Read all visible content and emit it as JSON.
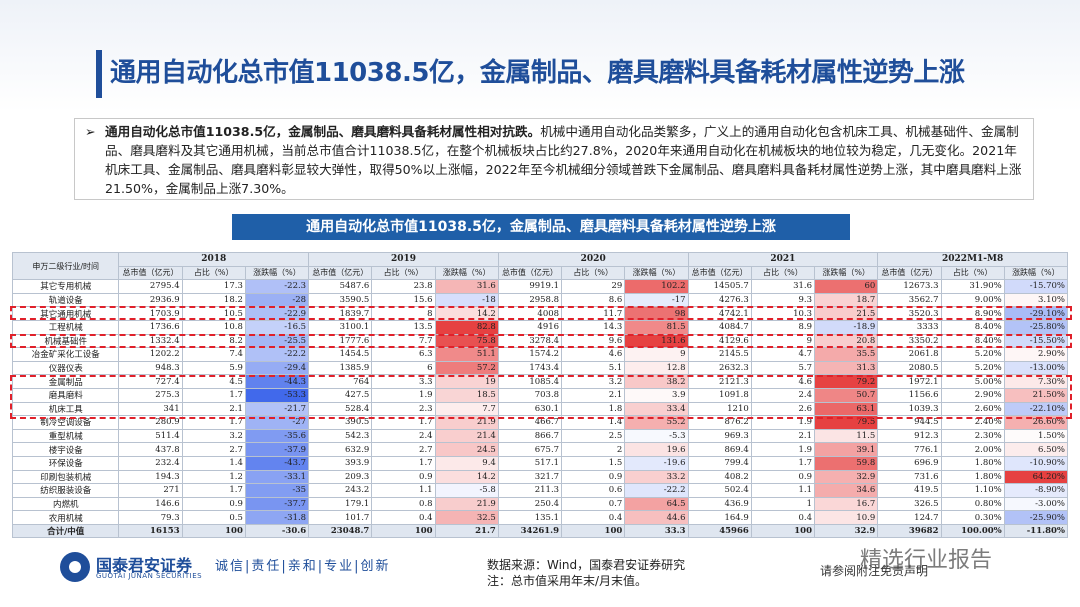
{
  "header": {
    "title": "通用自动化总市值11038.5亿，金属制品、磨具磨料具备耗材属性逆势上涨"
  },
  "summary": {
    "bullet": "➢",
    "lead": "通用自动化总市值11038.5亿，金属制品、磨具磨料具备耗材属性相对抗跌。",
    "text": "机械中通用自动化品类繁多，广义上的通用自动化包含机床工具、机械基础件、金属制品、磨具磨料及其它通用机械，当前总市值合计11038.5亿，在整个机械板块占比约27.8%，2020年来通用自动化在机械板块的地位较为稳定，几无变化。2021年机床工具、金属制品、磨具磨料彰显较大弹性，取得50%以上涨幅，2022年至今机械细分领域普跌下金属制品、磨具磨料具备耗材属性逆势上涨，其中磨具磨料上涨21.50%，金属制品上涨7.30%。"
  },
  "table": {
    "title": "通用自动化总市值11038.5亿，金属制品、磨具磨料具备耗材属性逆势上涨",
    "corner": "申万二级行业/时间",
    "groups": [
      {
        "year": "2018",
        "headers": [
          "总市值（亿元）",
          "占比（%）",
          "涨跌幅（%）"
        ]
      },
      {
        "year": "2019",
        "headers": [
          "总市值（亿元）",
          "占比（%）",
          "涨跌幅（%）"
        ]
      },
      {
        "year": "2020",
        "headers": [
          "总市值（亿元）",
          "占比（%）",
          "涨跌幅（%）"
        ]
      },
      {
        "year": "2021",
        "headers": [
          "总市值（亿元）",
          "占比（%）",
          "涨跌幅（%）"
        ]
      },
      {
        "year": "2022M1-M8",
        "headers": [
          "总市值（亿元）",
          "占比（%）",
          "涨跌幅（%）"
        ]
      }
    ],
    "rows": [
      {
        "label": "其它专用机械",
        "cells": [
          "2795.4",
          "17.3",
          "-22.3",
          "5487.6",
          "23.8",
          "31.6",
          "9919.1",
          "29",
          "102.2",
          "14505.7",
          "31.6",
          "60",
          "12673.3",
          "31.90%",
          "-15.70%"
        ]
      },
      {
        "label": "轨道设备",
        "cells": [
          "2936.9",
          "18.2",
          "-28",
          "3590.5",
          "15.6",
          "-18",
          "2958.8",
          "8.6",
          "-17",
          "4276.3",
          "9.3",
          "18.7",
          "3562.7",
          "9.00%",
          "3.10%"
        ]
      },
      {
        "label": "其它通用机械",
        "cells": [
          "1703.9",
          "10.5",
          "-22.9",
          "1839.7",
          "8",
          "14.2",
          "4008",
          "11.7",
          "98",
          "4742.1",
          "10.3",
          "21.5",
          "3520.3",
          "8.90%",
          "-29.10%"
        ]
      },
      {
        "label": "工程机械",
        "cells": [
          "1736.6",
          "10.8",
          "-16.5",
          "3100.1",
          "13.5",
          "82.8",
          "4916",
          "14.3",
          "81.5",
          "4084.7",
          "8.9",
          "-18.9",
          "3333",
          "8.40%",
          "-25.80%"
        ]
      },
      {
        "label": "机械基础件",
        "cells": [
          "1332.4",
          "8.2",
          "-25.5",
          "1777.6",
          "7.7",
          "75.8",
          "3278.4",
          "9.6",
          "131.6",
          "4129.6",
          "9",
          "20.8",
          "3350.2",
          "8.40%",
          "-15.50%"
        ]
      },
      {
        "label": "冶金矿采化工设备",
        "cells": [
          "1202.2",
          "7.4",
          "-22.2",
          "1454.5",
          "6.3",
          "51.1",
          "1574.2",
          "4.6",
          "9",
          "2145.5",
          "4.7",
          "35.5",
          "2061.8",
          "5.20%",
          "2.90%"
        ]
      },
      {
        "label": "仪器仪表",
        "cells": [
          "948.3",
          "5.9",
          "-29.4",
          "1385.9",
          "6",
          "57.2",
          "1743.4",
          "5.1",
          "12.8",
          "2632.3",
          "5.7",
          "31.3",
          "2080.5",
          "5.20%",
          "-13.00%"
        ]
      },
      {
        "label": "金属制品",
        "cells": [
          "727.4",
          "4.5",
          "-44.3",
          "764",
          "3.3",
          "19",
          "1085.4",
          "3.2",
          "38.2",
          "2121.3",
          "4.6",
          "79.2",
          "1972.1",
          "5.00%",
          "7.30%"
        ]
      },
      {
        "label": "磨具磨料",
        "cells": [
          "275.3",
          "1.7",
          "-53.3",
          "427.5",
          "1.9",
          "18.5",
          "703.8",
          "2.1",
          "3.9",
          "1091.8",
          "2.4",
          "50.7",
          "1156.6",
          "2.90%",
          "21.50%"
        ]
      },
      {
        "label": "机床工具",
        "cells": [
          "341",
          "2.1",
          "-21.7",
          "528.4",
          "2.3",
          "7.7",
          "630.1",
          "1.8",
          "33.4",
          "1210",
          "2.6",
          "63.1",
          "1039.3",
          "2.60%",
          "-22.10%"
        ]
      },
      {
        "label": "制冷空调设备",
        "cells": [
          "280.9",
          "1.7",
          "-27",
          "390.5",
          "1.7",
          "21.9",
          "466.7",
          "1.4",
          "55.2",
          "876.2",
          "1.9",
          "79.5",
          "944.5",
          "2.40%",
          "26.60%"
        ]
      },
      {
        "label": "重型机械",
        "cells": [
          "511.4",
          "3.2",
          "-35.6",
          "542.3",
          "2.4",
          "21.4",
          "866.7",
          "2.5",
          "-5.3",
          "969.3",
          "2.1",
          "11.5",
          "912.3",
          "2.30%",
          "1.50%"
        ]
      },
      {
        "label": "楼宇设备",
        "cells": [
          "437.8",
          "2.7",
          "-37.9",
          "632.9",
          "2.7",
          "24.5",
          "675.7",
          "2",
          "19.6",
          "869.4",
          "1.9",
          "39.1",
          "776.1",
          "2.00%",
          "6.50%"
        ]
      },
      {
        "label": "环保设备",
        "cells": [
          "232.4",
          "1.4",
          "-43.7",
          "393.9",
          "1.7",
          "9.4",
          "517.1",
          "1.5",
          "-19.6",
          "799.4",
          "1.7",
          "59.8",
          "696.9",
          "1.80%",
          "-10.90%"
        ]
      },
      {
        "label": "印刷包装机械",
        "cells": [
          "194.3",
          "1.2",
          "-33.1",
          "209.3",
          "0.9",
          "14.2",
          "321.7",
          "0.9",
          "33.2",
          "408.2",
          "0.9",
          "32.9",
          "731.6",
          "1.80%",
          "64.20%"
        ]
      },
      {
        "label": "纺织服装设备",
        "cells": [
          "271",
          "1.7",
          "-35",
          "243.2",
          "1.1",
          "-5.8",
          "211.3",
          "0.6",
          "-22.2",
          "502.4",
          "1.1",
          "34.6",
          "419.5",
          "1.10%",
          "-8.90%"
        ]
      },
      {
        "label": "内燃机",
        "cells": [
          "146.6",
          "0.9",
          "-37.7",
          "179.1",
          "0.8",
          "21.9",
          "250.4",
          "0.7",
          "64.5",
          "436.9",
          "1",
          "16.7",
          "326.5",
          "0.80%",
          "-3.00%"
        ]
      },
      {
        "label": "农用机械",
        "cells": [
          "79.3",
          "0.5",
          "-31.8",
          "101.7",
          "0.4",
          "32.5",
          "135.1",
          "0.4",
          "44.6",
          "164.9",
          "0.4",
          "10.9",
          "124.7",
          "0.30%",
          "-25.90%"
        ]
      },
      {
        "label": "合计/中值",
        "cells": [
          "16153",
          "100",
          "-30.6",
          "23048.7",
          "100",
          "21.7",
          "34261.9",
          "100",
          "33.3",
          "45966",
          "100",
          "32.9",
          "39682",
          "100.00%",
          "-11.80%"
        ]
      }
    ]
  },
  "footer": {
    "brand": "国泰君安证券",
    "brand_en": "GUOTAI JUNAN SECURITIES",
    "slogan": "诚信|责任|亲和|专业|创新",
    "source": "数据来源：Wind，国泰君安证券研究",
    "note": "注：总市值采用年末/月末值。",
    "disclaimer": "请参阅附注免责声明",
    "watermark": "精选行业报告"
  }
}
